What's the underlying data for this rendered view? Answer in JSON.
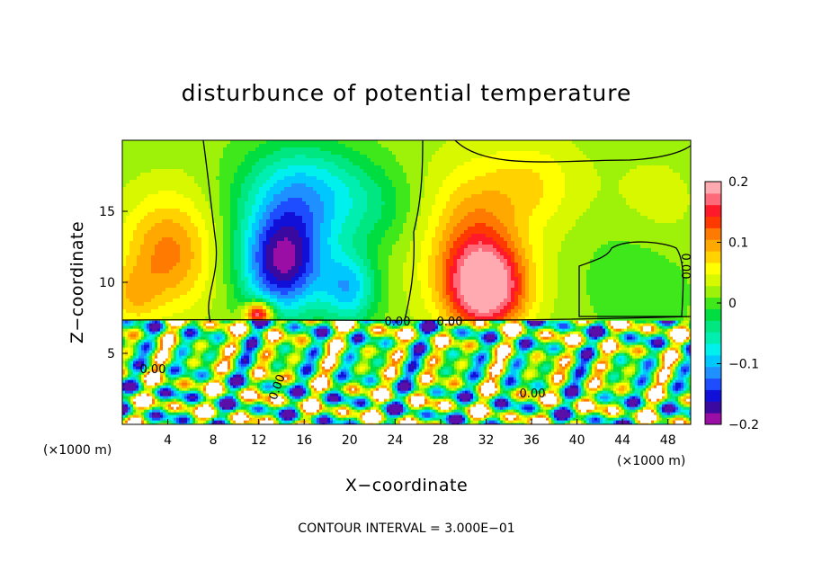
{
  "chart_data": {
    "type": "heatmap",
    "title": "disturbunce of potential temperature",
    "xlabel": "X−coordinate",
    "ylabel": "Z−coordinate",
    "x_unit": "(×1000 m)",
    "x_unit_right": "(×1000 m)",
    "xlim": [
      0,
      50
    ],
    "ylim": [
      0,
      20
    ],
    "x_ticks": [
      4,
      8,
      12,
      16,
      20,
      24,
      28,
      32,
      36,
      40,
      44,
      48
    ],
    "y_ticks": [
      5,
      10,
      15
    ],
    "colorbar": {
      "min": -0.2,
      "max": 0.2,
      "ticks": [
        -0.2,
        -0.1,
        0,
        0.1,
        0.2
      ],
      "tick_labels": [
        "−0.2",
        "−0.1",
        "0",
        "0.1",
        "0.2"
      ],
      "colors": [
        "#9a0ea6",
        "#3a0aa0",
        "#1010d8",
        "#1e4cff",
        "#1e90ff",
        "#00c8ff",
        "#00f0ee",
        "#00eeb0",
        "#00e680",
        "#00dd40",
        "#3ee81a",
        "#9ef20a",
        "#d8f800",
        "#ffff00",
        "#ffd200",
        "#ffa800",
        "#ff7a00",
        "#ff3a00",
        "#ff1a2a",
        "#ff6a7a",
        "#ffaab0"
      ]
    },
    "contour_labels": [
      "0.00",
      "0.00",
      "0.00",
      "0.00",
      "0.00",
      "0.00"
    ],
    "caption": "CONTOUR INTERVAL = 3.000E−01",
    "blobs": [
      {
        "x": 25,
        "y": 14,
        "rx": 40,
        "ry": 12,
        "amp": 0.03
      },
      {
        "x": 4,
        "y": 12,
        "rx": 4,
        "ry": 4,
        "amp": 0.09
      },
      {
        "x": 1,
        "y": 9,
        "rx": 2,
        "ry": 2,
        "amp": 0.05
      },
      {
        "x": 14,
        "y": 11,
        "rx": 3.5,
        "ry": 3.5,
        "amp": -0.16
      },
      {
        "x": 15,
        "y": 14.5,
        "rx": 5,
        "ry": 4.5,
        "amp": -0.1
      },
      {
        "x": 20,
        "y": 9.5,
        "rx": 2.5,
        "ry": 2.5,
        "amp": -0.11
      },
      {
        "x": 17,
        "y": 17,
        "rx": 6,
        "ry": 3,
        "amp": -0.05
      },
      {
        "x": 22,
        "y": 15,
        "rx": 4,
        "ry": 3,
        "amp": -0.04
      },
      {
        "x": 32,
        "y": 9.5,
        "rx": 3.5,
        "ry": 3,
        "amp": 0.18
      },
      {
        "x": 31,
        "y": 13,
        "rx": 4,
        "ry": 4.5,
        "amp": 0.08
      },
      {
        "x": 36,
        "y": 17,
        "rx": 4,
        "ry": 3,
        "amp": 0.04
      },
      {
        "x": 45,
        "y": 11,
        "rx": 5,
        "ry": 4,
        "amp": -0.03
      },
      {
        "x": 47,
        "y": 15,
        "rx": 4,
        "ry": 4,
        "amp": 0.02
      },
      {
        "x": 12,
        "y": 7.8,
        "rx": 1.2,
        "ry": 0.8,
        "amp": 0.2
      }
    ]
  }
}
